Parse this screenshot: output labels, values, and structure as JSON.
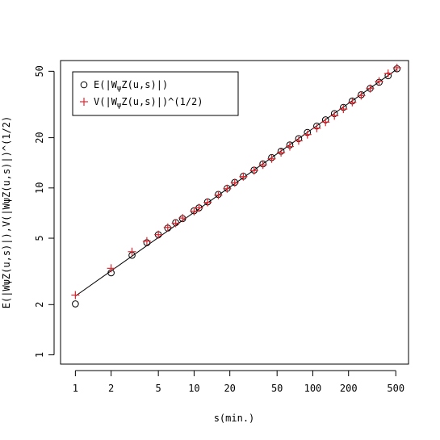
{
  "chart_data": {
    "type": "scatter",
    "x_scale": "log",
    "y_scale": "log",
    "xlim": [
      0.75,
      640
    ],
    "ylim": [
      0.88,
      58
    ],
    "x_ticks": [
      1,
      2,
      5,
      10,
      20,
      50,
      100,
      200,
      500
    ],
    "x_tick_labels": [
      "1",
      "2",
      "5",
      "10",
      "20",
      "50",
      "100",
      "200",
      "500"
    ],
    "y_ticks": [
      1,
      2,
      5,
      10,
      20,
      50
    ],
    "y_tick_labels": [
      "1",
      "2",
      "5",
      "10",
      "20",
      "50"
    ],
    "xlabel": "s(min.)",
    "ylabel": "E(|WψZ(u,s)|),V(|WψZ(u,s)|)^(1/2)",
    "grid": false,
    "legend_position": "top-left",
    "legend": [
      {
        "marker": "circle",
        "prefix": "E(",
        "suffix": ")",
        "color": "#000000"
      },
      {
        "marker": "plus",
        "prefix": "V(",
        "suffix": ")^(1/2)",
        "color": "#e8222b"
      }
    ],
    "x": [
      1,
      2,
      3,
      4,
      5,
      6,
      7,
      8,
      10,
      11,
      13,
      16,
      19,
      22,
      26,
      32,
      38,
      45,
      54,
      64,
      76,
      90,
      108,
      128,
      152,
      181,
      215,
      256,
      304,
      362,
      431,
      512
    ],
    "series": [
      {
        "marker": "circle",
        "values": [
          2.02,
          3.1,
          3.95,
          4.7,
          5.25,
          5.75,
          6.2,
          6.55,
          7.3,
          7.6,
          8.25,
          9.15,
          9.95,
          10.8,
          11.75,
          12.8,
          13.95,
          15.2,
          16.6,
          18.1,
          19.75,
          21.5,
          23.5,
          25.6,
          27.9,
          30.4,
          33.2,
          36.2,
          39.5,
          43.0,
          47.0,
          51.8
        ]
      },
      {
        "marker": "plus",
        "values": [
          2.28,
          3.3,
          4.15,
          4.8,
          5.25,
          5.8,
          6.15,
          6.6,
          7.25,
          7.6,
          8.2,
          9.05,
          9.9,
          10.75,
          11.7,
          12.7,
          13.75,
          14.95,
          16.3,
          17.7,
          19.2,
          20.9,
          22.8,
          24.8,
          27.1,
          29.7,
          32.6,
          35.8,
          39.4,
          43.6,
          48.5,
          52.5
        ]
      }
    ],
    "fit_line": {
      "x": [
        1,
        512
      ],
      "y": [
        2.25,
        51.5
      ]
    }
  }
}
